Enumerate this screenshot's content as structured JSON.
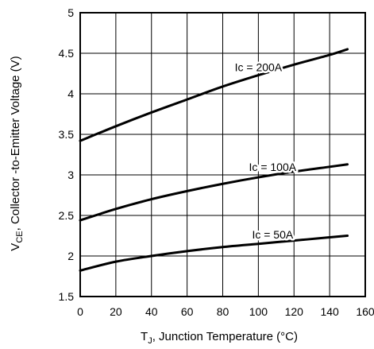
{
  "chart_data": {
    "type": "line",
    "xlabel_prefix": "T",
    "xlabel_sub": "J",
    "xlabel_rest": ", Junction Temperature (°C)",
    "ylabel_prefix": "V",
    "ylabel_sub": "CE",
    "ylabel_rest": ", Collector -to-Emitter Voltage (V)",
    "xlim": [
      0,
      160
    ],
    "ylim": [
      1.5,
      5
    ],
    "grid": true,
    "x_ticks": [
      "0",
      "20",
      "40",
      "60",
      "80",
      "100",
      "120",
      "140",
      "160"
    ],
    "y_ticks": [
      "1.5",
      "2",
      "2.5",
      "3",
      "3.5",
      "4",
      "4.5",
      "5"
    ],
    "series": [
      {
        "name": "Ic = 200A",
        "x": [
          0,
          20,
          40,
          60,
          80,
          100,
          120,
          140,
          150
        ],
        "y": [
          3.42,
          3.6,
          3.77,
          3.93,
          4.09,
          4.23,
          4.36,
          4.48,
          4.55
        ]
      },
      {
        "name": "Ic = 100A",
        "x": [
          0,
          20,
          40,
          60,
          80,
          100,
          120,
          140,
          150
        ],
        "y": [
          2.44,
          2.58,
          2.7,
          2.8,
          2.89,
          2.97,
          3.04,
          3.1,
          3.13
        ]
      },
      {
        "name": "Ic = 50A",
        "x": [
          0,
          20,
          40,
          60,
          80,
          100,
          120,
          140,
          150
        ],
        "y": [
          1.82,
          1.93,
          2.0,
          2.06,
          2.11,
          2.15,
          2.19,
          2.23,
          2.25
        ]
      }
    ]
  }
}
